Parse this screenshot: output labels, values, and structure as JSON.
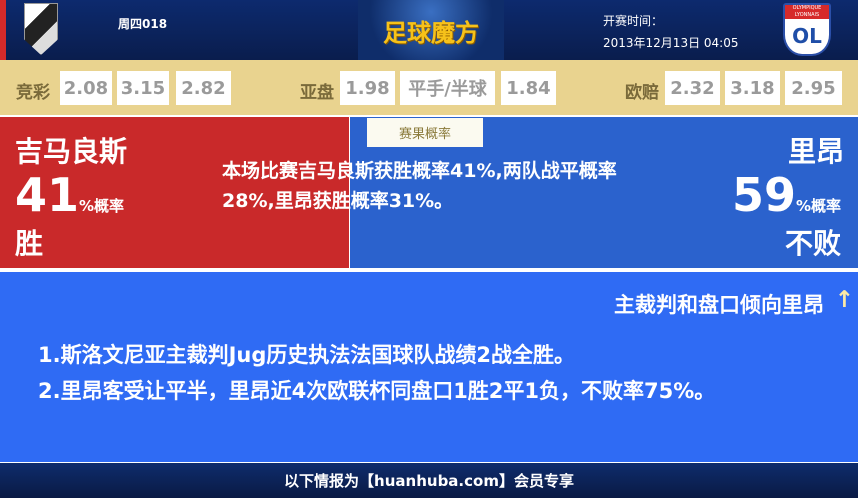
{
  "header": {
    "match_no": "周四018",
    "brand": "足球魔方",
    "kickoff_label": "开赛时间：",
    "kickoff_time": "2013年12月13日 04:05",
    "away_logo_text": "OLYMPIQUE LYONNAIS",
    "away_logo_mark": "OL"
  },
  "odds": {
    "jingcai": {
      "label": "竞彩",
      "values": [
        "2.08",
        "3.15",
        "2.82"
      ]
    },
    "asian": {
      "label": "亚盘",
      "values": [
        "1.98",
        "平手/半球",
        "1.84"
      ]
    },
    "euro": {
      "label": "欧赔",
      "values": [
        "2.32",
        "3.18",
        "2.95"
      ]
    }
  },
  "probability": {
    "tab": "赛果概率",
    "home": {
      "name": "吉马良斯",
      "pct": "41",
      "unit": "%概率",
      "result": "胜"
    },
    "away": {
      "name": "里昂",
      "pct": "59",
      "unit": "%概率",
      "result": "不败"
    },
    "summary": "本场比赛吉马良斯获胜概率41%,两队战平概率28%,里昂获胜概率31%。"
  },
  "analysis": {
    "tendency": "主裁判和盘口倾向里昂",
    "notes": [
      "1.斯洛文尼亚主裁判Jug历史执法法国球队战绩2战全胜。",
      "2.里昂客受让平半，里昂近4次欧联杯同盘口1胜2平1负，不败率75%。"
    ]
  },
  "footer": {
    "text": "以下情报为【huanhuba.com】会员专享"
  },
  "colors": {
    "home": "#c9292a",
    "away": "#2b62cd",
    "analysis": "#2f6bf4",
    "odds_bar": "#e9d38f",
    "header": "#0d2a6e"
  }
}
